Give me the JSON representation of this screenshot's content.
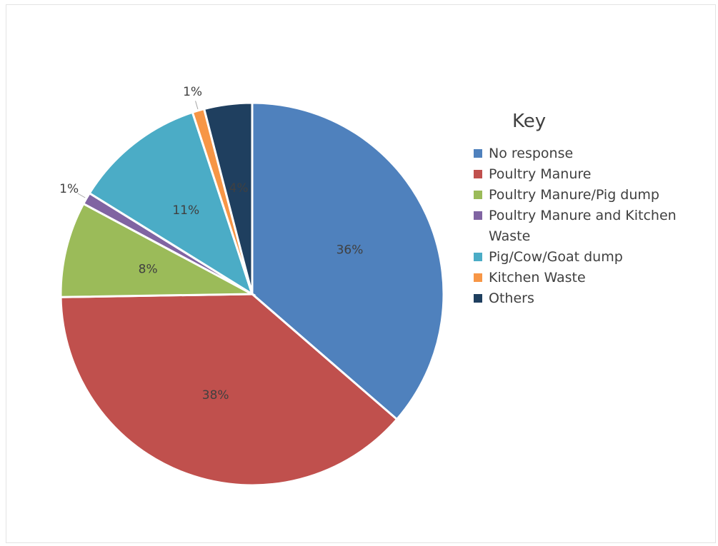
{
  "chart_data": {
    "type": "pie",
    "title": "",
    "legend_title": "Key",
    "legend_position": "right",
    "categories": [
      "No response",
      "Poultry Manure",
      "Poultry Manure/Pig dump",
      "Poultry Manure and Kitchen Waste",
      "Pig/Cow/Goat dump",
      "Kitchen Waste",
      "Others"
    ],
    "values": [
      36,
      38,
      8,
      1,
      11,
      1,
      4
    ],
    "data_labels": [
      "36%",
      "38%",
      "8%",
      "1%",
      "11%",
      "1%",
      "4%"
    ],
    "colors": [
      "#4f81bd",
      "#c0504d",
      "#9bbb59",
      "#8064a2",
      "#4bacc6",
      "#f79646",
      "#1f3f5f"
    ]
  }
}
